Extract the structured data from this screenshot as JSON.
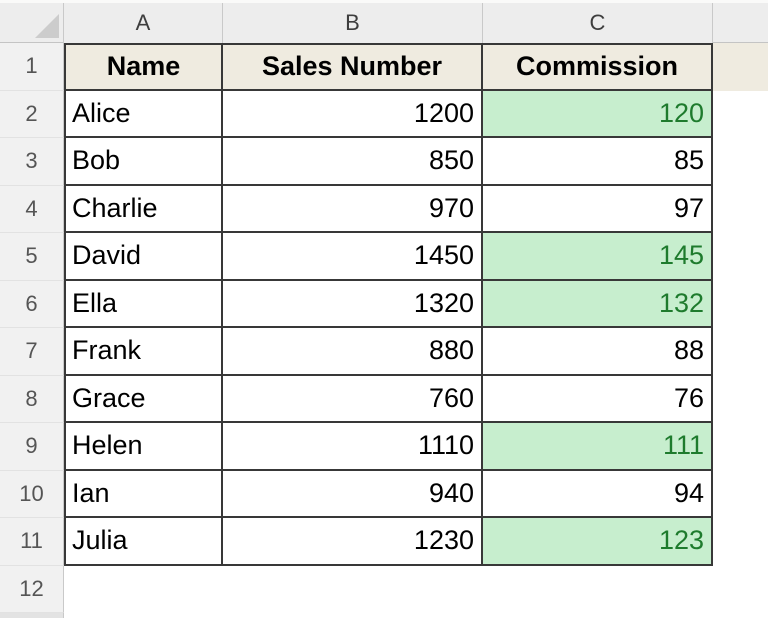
{
  "sheet": {
    "column_headers": [
      "A",
      "B",
      "C"
    ],
    "row_numbers": [
      "1",
      "2",
      "3",
      "4",
      "5",
      "6",
      "7",
      "8",
      "9",
      "10",
      "11",
      "12"
    ],
    "table": {
      "headers": [
        "Name",
        "Sales Number",
        "Commission"
      ],
      "rows": [
        {
          "name": "Alice",
          "sales": "1200",
          "commission": "120",
          "highlighted": true
        },
        {
          "name": "Bob",
          "sales": "850",
          "commission": "85",
          "highlighted": false
        },
        {
          "name": "Charlie",
          "sales": "970",
          "commission": "97",
          "highlighted": false
        },
        {
          "name": "David",
          "sales": "1450",
          "commission": "145",
          "highlighted": true
        },
        {
          "name": "Ella",
          "sales": "1320",
          "commission": "132",
          "highlighted": true
        },
        {
          "name": "Frank",
          "sales": "880",
          "commission": "88",
          "highlighted": false
        },
        {
          "name": "Grace",
          "sales": "760",
          "commission": "76",
          "highlighted": false
        },
        {
          "name": "Helen",
          "sales": "1110",
          "commission": "111",
          "highlighted": true
        },
        {
          "name": "Ian",
          "sales": "940",
          "commission": "94",
          "highlighted": false
        },
        {
          "name": "Julia",
          "sales": "1230",
          "commission": "123",
          "highlighted": true
        }
      ]
    },
    "colors": {
      "header_fill": "#EFEBE0",
      "highlight_fill": "#C7EECE",
      "highlight_text": "#1E7B2D",
      "chrome_bg": "#EDEDED",
      "table_border": "#383838"
    }
  }
}
